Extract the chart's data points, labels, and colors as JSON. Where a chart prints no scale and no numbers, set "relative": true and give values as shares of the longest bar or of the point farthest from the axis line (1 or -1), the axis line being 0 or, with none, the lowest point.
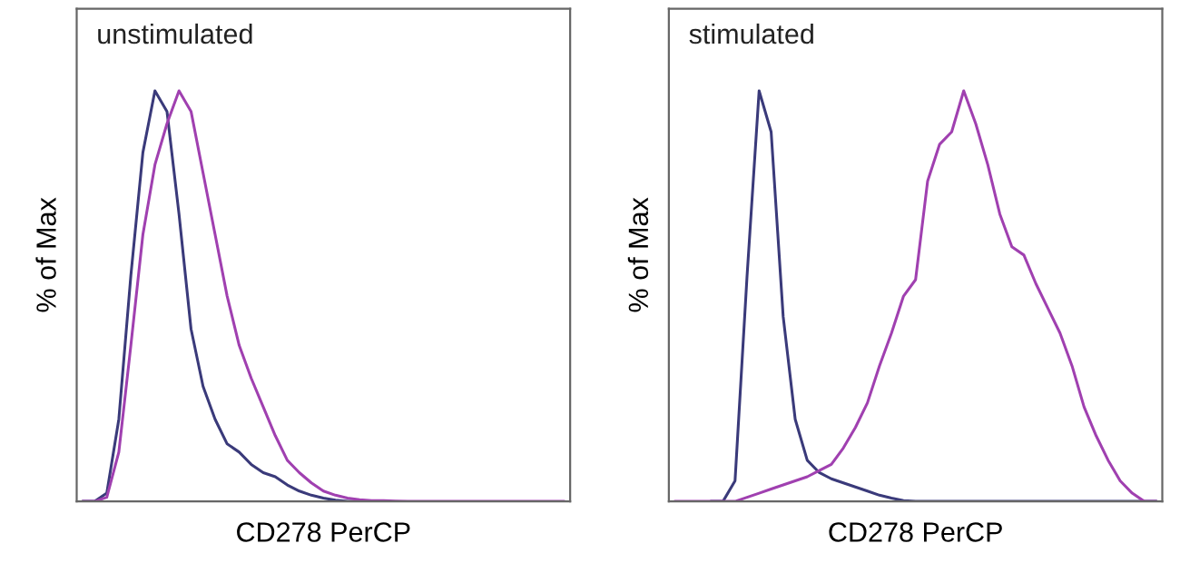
{
  "chart_data": [
    {
      "type": "line",
      "title": "unstimulated",
      "ylabel": "% of Max",
      "xlabel": "CD278 PerCP",
      "relative": true,
      "tick_labels": false,
      "categories": [
        null,
        null,
        null,
        null,
        null,
        null,
        null,
        null,
        null,
        null,
        null,
        null,
        null,
        null,
        null,
        null,
        null,
        null,
        null,
        null,
        null,
        null,
        null,
        null,
        null,
        null,
        null,
        null,
        null,
        null,
        null,
        null,
        null,
        null,
        null,
        null,
        null,
        null,
        null,
        null,
        null
      ],
      "series": [
        {
          "color": "#3a3a7a",
          "values": [
            0,
            0,
            0.02,
            0.2,
            0.55,
            0.85,
            1.0,
            0.95,
            0.7,
            0.42,
            0.28,
            0.2,
            0.14,
            0.12,
            0.09,
            0.07,
            0.06,
            0.04,
            0.025,
            0.015,
            0.008,
            0.003,
            0,
            0,
            0,
            null,
            null,
            null,
            null,
            null,
            null,
            null,
            null,
            null,
            null,
            null,
            null,
            null,
            null,
            null,
            null
          ]
        },
        {
          "color": "#a040b0",
          "values": [
            0,
            0,
            0.01,
            0.12,
            0.38,
            0.65,
            0.82,
            0.92,
            1.0,
            0.95,
            0.8,
            0.65,
            0.5,
            0.38,
            0.3,
            0.23,
            0.16,
            0.1,
            0.07,
            0.045,
            0.025,
            0.015,
            0.008,
            0.004,
            0.002,
            0.002,
            0.001,
            0,
            0,
            0,
            0,
            0,
            0,
            0,
            0,
            0,
            0,
            0,
            0,
            0,
            0
          ]
        }
      ]
    },
    {
      "type": "line",
      "title": "stimulated",
      "ylabel": "% of Max",
      "xlabel": "CD278 PerCP",
      "relative": true,
      "tick_labels": false,
      "categories": [
        null,
        null,
        null,
        null,
        null,
        null,
        null,
        null,
        null,
        null,
        null,
        null,
        null,
        null,
        null,
        null,
        null,
        null,
        null,
        null,
        null,
        null,
        null,
        null,
        null,
        null,
        null,
        null,
        null,
        null,
        null,
        null,
        null,
        null,
        null,
        null,
        null,
        null,
        null,
        null,
        null
      ],
      "series": [
        {
          "color": "#3a3a7a",
          "values": [
            null,
            null,
            null,
            0,
            0,
            0.05,
            0.55,
            1.0,
            0.9,
            0.45,
            0.2,
            0.1,
            0.07,
            0.055,
            0.045,
            0.035,
            0.025,
            0.015,
            0.008,
            0.002,
            0,
            0,
            0,
            0,
            0,
            0,
            0,
            0,
            0,
            0,
            0,
            0,
            0,
            0,
            0,
            0,
            0,
            0,
            0,
            0,
            0
          ]
        },
        {
          "color": "#a040b0",
          "values": [
            0,
            0,
            0,
            0,
            0,
            0,
            0.01,
            0.02,
            0.03,
            0.04,
            0.05,
            0.06,
            0.075,
            0.09,
            0.13,
            0.18,
            0.24,
            0.33,
            0.41,
            0.5,
            0.54,
            0.78,
            0.87,
            0.9,
            1.0,
            0.92,
            0.82,
            0.7,
            0.62,
            0.6,
            0.53,
            0.47,
            0.41,
            0.33,
            0.23,
            0.16,
            0.1,
            0.05,
            0.02,
            0,
            0
          ]
        }
      ]
    }
  ]
}
